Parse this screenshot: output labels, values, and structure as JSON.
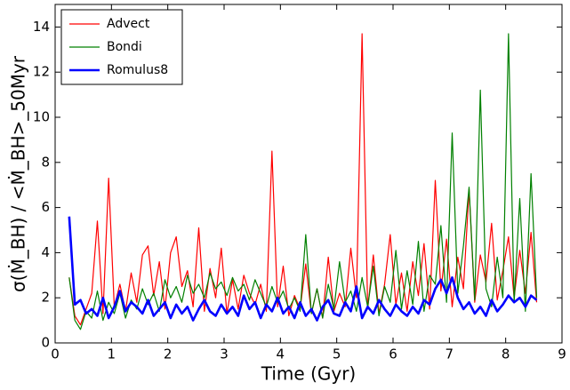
{
  "chart_data": {
    "type": "line",
    "xlabel": "Time (Gyr)",
    "ylabel": "σ(Ṁ_BH) / <Ṁ_BH>_50Myr",
    "x": [
      0.25,
      0.35,
      0.45,
      0.55,
      0.65,
      0.75,
      0.85,
      0.95,
      1.05,
      1.15,
      1.25,
      1.35,
      1.45,
      1.55,
      1.65,
      1.75,
      1.85,
      1.95,
      2.05,
      2.15,
      2.25,
      2.35,
      2.45,
      2.55,
      2.65,
      2.75,
      2.85,
      2.95,
      3.05,
      3.15,
      3.25,
      3.35,
      3.45,
      3.55,
      3.65,
      3.75,
      3.85,
      3.95,
      4.05,
      4.15,
      4.25,
      4.35,
      4.45,
      4.55,
      4.65,
      4.75,
      4.85,
      4.95,
      5.05,
      5.15,
      5.25,
      5.35,
      5.45,
      5.55,
      5.65,
      5.75,
      5.85,
      5.95,
      6.05,
      6.15,
      6.25,
      6.35,
      6.45,
      6.55,
      6.65,
      6.75,
      6.85,
      6.95,
      7.05,
      7.15,
      7.25,
      7.35,
      7.45,
      7.55,
      7.65,
      7.75,
      7.85,
      7.95,
      8.05,
      8.15,
      8.25,
      8.35,
      8.45,
      8.55
    ],
    "series": [
      {
        "name": "Advect",
        "color": "#ff0000",
        "width": 1.2,
        "values": [
          2.9,
          1.2,
          0.8,
          1.5,
          2.2,
          5.4,
          1.3,
          7.3,
          1.6,
          2.6,
          1.4,
          3.1,
          1.8,
          3.9,
          4.3,
          2.1,
          3.6,
          1.5,
          4.0,
          4.7,
          2.5,
          3.2,
          1.6,
          5.1,
          1.4,
          3.3,
          2.0,
          4.2,
          1.3,
          2.8,
          1.5,
          3.0,
          2.2,
          1.7,
          2.6,
          1.4,
          8.5,
          1.6,
          3.4,
          1.2,
          2.1,
          1.5,
          3.5,
          1.3,
          2.4,
          1.1,
          3.8,
          1.4,
          2.2,
          1.6,
          4.2,
          2.0,
          13.7,
          1.5,
          3.9,
          1.3,
          2.6,
          4.8,
          1.7,
          3.1,
          1.4,
          3.6,
          2.1,
          4.4,
          1.5,
          7.2,
          2.3,
          4.6,
          1.6,
          3.8,
          2.4,
          6.8,
          1.8,
          3.9,
          2.7,
          5.3,
          1.9,
          3.2,
          4.7,
          2.0,
          4.1,
          2.2,
          4.9,
          1.8
        ]
      },
      {
        "name": "Bondi",
        "color": "#008000",
        "width": 1.2,
        "values": [
          2.9,
          1.0,
          0.6,
          1.4,
          1.1,
          2.3,
          1.0,
          1.8,
          1.3,
          2.2,
          1.1,
          1.9,
          1.5,
          2.4,
          1.7,
          2.2,
          1.4,
          2.8,
          2.0,
          2.5,
          1.8,
          3.0,
          2.2,
          2.6,
          2.0,
          3.1,
          2.4,
          2.7,
          2.1,
          2.9,
          2.3,
          2.6,
          1.9,
          2.8,
          2.2,
          1.6,
          2.5,
          1.8,
          2.3,
          1.5,
          2.0,
          1.4,
          4.8,
          1.3,
          2.4,
          1.1,
          2.6,
          1.5,
          3.6,
          1.8,
          2.3,
          1.4,
          2.9,
          1.6,
          3.4,
          1.2,
          2.5,
          1.8,
          4.1,
          1.5,
          3.2,
          1.7,
          4.5,
          1.4,
          3.0,
          2.6,
          5.2,
          1.8,
          9.3,
          2.2,
          4.3,
          6.9,
          1.9,
          11.2,
          2.4,
          1.6,
          3.8,
          2.0,
          13.7,
          1.8,
          6.4,
          1.4,
          7.5,
          2.0
        ]
      },
      {
        "name": "Romulus8",
        "color": "#0000ff",
        "width": 2.6,
        "values": [
          5.6,
          1.7,
          1.9,
          1.3,
          1.5,
          1.2,
          2.0,
          1.1,
          1.6,
          2.3,
          1.4,
          1.8,
          1.6,
          1.3,
          1.9,
          1.2,
          1.5,
          1.8,
          1.1,
          1.7,
          1.3,
          1.6,
          1.0,
          1.5,
          1.9,
          1.4,
          1.2,
          1.7,
          1.3,
          1.6,
          1.2,
          2.1,
          1.5,
          1.8,
          1.1,
          1.7,
          1.4,
          2.0,
          1.3,
          1.6,
          1.1,
          1.8,
          1.2,
          1.5,
          1.0,
          1.6,
          1.9,
          1.3,
          1.2,
          1.8,
          1.4,
          2.5,
          1.1,
          1.6,
          1.3,
          1.9,
          1.5,
          1.2,
          1.7,
          1.4,
          1.2,
          1.6,
          1.3,
          1.9,
          1.7,
          2.4,
          2.8,
          2.2,
          2.9,
          2.0,
          1.5,
          1.8,
          1.3,
          1.6,
          1.2,
          1.9,
          1.4,
          1.7,
          2.1,
          1.8,
          2.0,
          1.6,
          2.1,
          1.9
        ]
      }
    ],
    "xlim": [
      0,
      9
    ],
    "xticks": [
      0,
      1,
      2,
      3,
      4,
      5,
      6,
      7,
      8,
      9
    ],
    "ylim": [
      0,
      15
    ],
    "yticks": [
      0,
      2,
      4,
      6,
      8,
      10,
      12,
      14
    ],
    "legend": "upper left"
  }
}
